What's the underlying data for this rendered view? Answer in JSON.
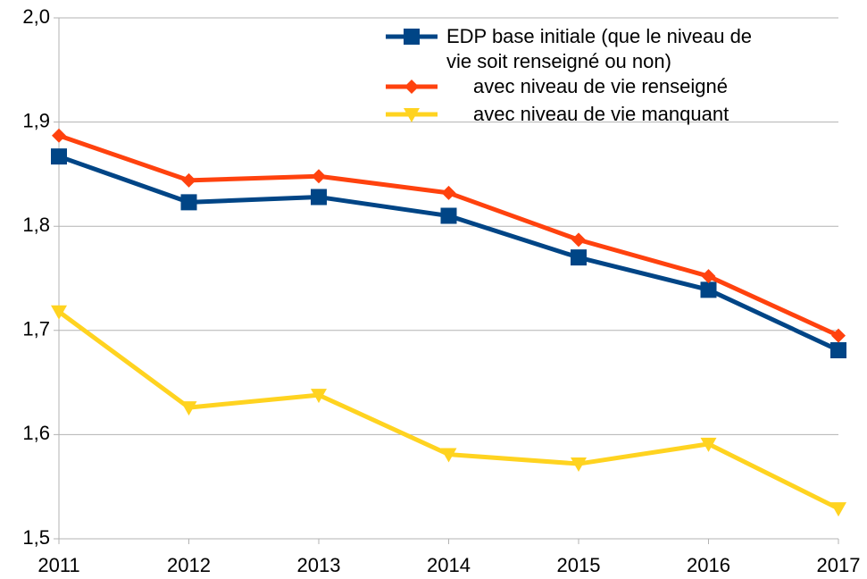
{
  "chart_data": {
    "type": "line",
    "categories": [
      "2011",
      "2012",
      "2013",
      "2014",
      "2015",
      "2016",
      "2017"
    ],
    "series": [
      {
        "name": "EDP base initiale (que le niveau de vie soit renseigné ou non)",
        "color": "#004586",
        "marker": "square",
        "values": [
          1.867,
          1.823,
          1.828,
          1.81,
          1.77,
          1.739,
          1.681
        ]
      },
      {
        "name": "avec niveau de vie renseigné",
        "color": "#ff420e",
        "marker": "diamond",
        "values": [
          1.887,
          1.844,
          1.848,
          1.832,
          1.787,
          1.752,
          1.695
        ]
      },
      {
        "name": "avec niveau de vie manquant",
        "color": "#ffd320",
        "marker": "triangle-down",
        "values": [
          1.718,
          1.626,
          1.638,
          1.581,
          1.572,
          1.591,
          1.529
        ]
      }
    ],
    "ylim": [
      1.5,
      2.0
    ],
    "yticks": [
      {
        "value": 1.5,
        "label": "1,5"
      },
      {
        "value": 1.6,
        "label": "1,6"
      },
      {
        "value": 1.7,
        "label": "1,7"
      },
      {
        "value": 1.8,
        "label": "1,8"
      },
      {
        "value": 1.9,
        "label": "1,9"
      },
      {
        "value": 2.0,
        "label": "2,0"
      }
    ],
    "grid": true,
    "legend": "top-right"
  }
}
